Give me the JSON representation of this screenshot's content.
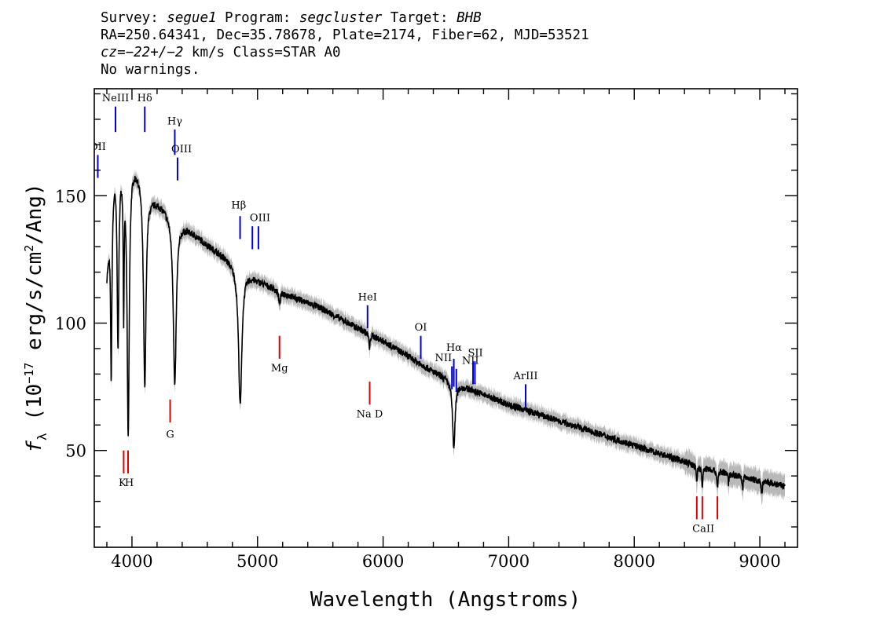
{
  "header": {
    "survey_label": "Survey: ",
    "survey": "segue1",
    "program_label": " Program: ",
    "program": "segcluster",
    "target_label": " Target: ",
    "target": "BHB",
    "coords_line": "RA=250.64341, Dec=35.78678, Plate=2174, Fiber=62, MJD=53521",
    "cz_label": "cz",
    "cz_value": "=−22+/−2",
    "cz_rest": " km/s Class=STAR A0",
    "warnings": "No warnings."
  },
  "colors": {
    "emission": "#0000dd",
    "absorption": "#dd0000",
    "flux": "#000000",
    "error_band": "#b8b8b8",
    "frame": "#000000"
  },
  "chart_data": {
    "type": "line",
    "title": "",
    "xlabel": "Wavelength (Angstroms)",
    "ylabel": "fλ (10⁻¹⁷ erg/s/cm²/Ang)",
    "ylabel_parts": {
      "f": "f",
      "lambda": "λ",
      "pre": " (10",
      "exp1": "−17",
      "mid": " erg/s/cm",
      "exp2": "2",
      "post": "/Ang)"
    },
    "xlim": [
      3700,
      9300
    ],
    "ylim": [
      12,
      192
    ],
    "x_major_ticks": [
      4000,
      5000,
      6000,
      7000,
      8000,
      9000
    ],
    "x_tick_labels": [
      "4000",
      "5000",
      "6000",
      "7000",
      "8000",
      "9000"
    ],
    "x_minor_step": 200,
    "y_major_ticks": [
      50,
      100,
      150
    ],
    "y_tick_labels": [
      "50",
      "100",
      "150"
    ],
    "y_minor_step": 10,
    "grid": false,
    "continuum_anchors": {
      "x": [
        3800,
        3840,
        3860,
        3900,
        3950,
        4000,
        4060,
        4150,
        4250,
        4350,
        4450,
        4600,
        4800,
        5000,
        5200,
        5500,
        5800,
        6000,
        6200,
        6400,
        6600,
        6800,
        7000,
        7500,
        8000,
        8500,
        9000,
        9200
      ],
      "y": [
        120,
        148,
        160,
        165,
        162,
        164,
        160,
        150,
        146,
        141,
        137,
        131,
        124,
        117,
        112,
        106,
        98,
        93,
        87,
        81,
        76,
        72,
        68,
        60,
        52,
        44,
        38,
        36
      ]
    },
    "absorption_features": [
      {
        "x": 3835,
        "depth": 65,
        "width": 6
      },
      {
        "x": 3889,
        "depth": 72,
        "width": 8
      },
      {
        "x": 3934,
        "depth": 55,
        "width": 4
      },
      {
        "x": 3970,
        "depth": 106,
        "width": 10
      },
      {
        "x": 4102,
        "depth": 80,
        "width": 12
      },
      {
        "x": 4341,
        "depth": 66,
        "width": 14
      },
      {
        "x": 4862,
        "depth": 54,
        "width": 16
      },
      {
        "x": 5175,
        "depth": 5,
        "width": 8
      },
      {
        "x": 5892,
        "depth": 6,
        "width": 5
      },
      {
        "x": 6563,
        "depth": 26,
        "width": 12
      },
      {
        "x": 8498,
        "depth": 6,
        "width": 5
      },
      {
        "x": 8542,
        "depth": 8,
        "width": 5
      },
      {
        "x": 8662,
        "depth": 7,
        "width": 5
      },
      {
        "x": 8750,
        "depth": 4,
        "width": 4
      },
      {
        "x": 8863,
        "depth": 5,
        "width": 4
      },
      {
        "x": 9015,
        "depth": 5,
        "width": 5
      }
    ],
    "line_markers": [
      {
        "label": "OII",
        "x": 3728,
        "y0": 166,
        "y1": 157,
        "color": "emission",
        "lx": 3728,
        "ly": 168,
        "anchor": "middle"
      },
      {
        "label": "NeIII",
        "x": 3869,
        "y0": 185,
        "y1": 175,
        "color": "emission",
        "lx": 3869,
        "ly": 187,
        "anchor": "middle"
      },
      {
        "label": "Hδ",
        "x": 4102,
        "y0": 185,
        "y1": 175,
        "color": "emission",
        "lx": 4102,
        "ly": 187,
        "anchor": "middle"
      },
      {
        "label": "Hγ",
        "x": 4341,
        "y0": 176,
        "y1": 166,
        "color": "emission",
        "lx": 4341,
        "ly": 178,
        "anchor": "middle"
      },
      {
        "label": "OIII",
        "x": 4363,
        "y0": 165,
        "y1": 156,
        "color": "emission",
        "lx": 4395,
        "ly": 167,
        "anchor": "middle"
      },
      {
        "label": "Hβ",
        "x": 4861,
        "y0": 142,
        "y1": 133,
        "color": "emission",
        "lx": 4850,
        "ly": 145,
        "anchor": "middle"
      },
      {
        "label": "OIII",
        "x": 4959,
        "y0": 138,
        "y1": 129,
        "color": "emission",
        "lx": 5020,
        "ly": 140,
        "anchor": "middle"
      },
      {
        "label": "OIII",
        "x": 5007,
        "y0": 138,
        "y1": 129,
        "color": "emission",
        "lx": null,
        "ly": null,
        "anchor": "middle"
      },
      {
        "label": "HeI",
        "x": 5876,
        "y0": 107,
        "y1": 98,
        "color": "emission",
        "lx": 5876,
        "ly": 109,
        "anchor": "middle"
      },
      {
        "label": "OI",
        "x": 6300,
        "y0": 95,
        "y1": 86,
        "color": "emission",
        "lx": 6300,
        "ly": 97,
        "anchor": "middle"
      },
      {
        "label": "NII",
        "x": 6548,
        "y0": 83,
        "y1": 74,
        "color": "emission",
        "lx": 6480,
        "ly": 85,
        "anchor": "middle"
      },
      {
        "label": "Hα",
        "x": 6563,
        "y0": 86,
        "y1": 75,
        "color": "emission",
        "lx": 6565,
        "ly": 89,
        "anchor": "middle"
      },
      {
        "label": "NII",
        "x": 6583,
        "y0": 82,
        "y1": 73,
        "color": "emission",
        "lx": 6695,
        "ly": 84,
        "anchor": "middle"
      },
      {
        "label": "SII",
        "x": 6716,
        "y0": 85,
        "y1": 76,
        "color": "emission",
        "lx": 6735,
        "ly": 87,
        "anchor": "middle"
      },
      {
        "label": "SII",
        "x": 6731,
        "y0": 85,
        "y1": 76,
        "color": "emission",
        "lx": null,
        "ly": null,
        "anchor": "middle"
      },
      {
        "label": "ArIII",
        "x": 7135,
        "y0": 76,
        "y1": 67,
        "color": "emission",
        "lx": 7135,
        "ly": 78,
        "anchor": "middle"
      },
      {
        "label": "K",
        "x": 3934,
        "y0": 50,
        "y1": 41,
        "color": "absorption",
        "lx": 3924,
        "ly": 36,
        "anchor": "middle"
      },
      {
        "label": "H",
        "x": 3969,
        "y0": 50,
        "y1": 41,
        "color": "absorption",
        "lx": 3979,
        "ly": 36,
        "anchor": "middle"
      },
      {
        "label": "G",
        "x": 4304,
        "y0": 70,
        "y1": 61,
        "color": "absorption",
        "lx": 4304,
        "ly": 55,
        "anchor": "middle"
      },
      {
        "label": "Mg",
        "x": 5175,
        "y0": 95,
        "y1": 86,
        "color": "absorption",
        "lx": 5175,
        "ly": 81,
        "anchor": "middle"
      },
      {
        "label": "Na D",
        "x": 5893,
        "y0": 77,
        "y1": 68,
        "color": "absorption",
        "lx": 5893,
        "ly": 63,
        "anchor": "middle"
      },
      {
        "label": "CaII",
        "x": 8498,
        "y0": 32,
        "y1": 23,
        "color": "absorption",
        "lx": 8550,
        "ly": 18,
        "anchor": "middle"
      },
      {
        "label": "CaII",
        "x": 8542,
        "y0": 32,
        "y1": 23,
        "color": "absorption",
        "lx": null,
        "ly": null,
        "anchor": "middle"
      },
      {
        "label": "CaII",
        "x": 8662,
        "y0": 32,
        "y1": 23,
        "color": "absorption",
        "lx": null,
        "ly": null,
        "anchor": "middle"
      }
    ]
  }
}
